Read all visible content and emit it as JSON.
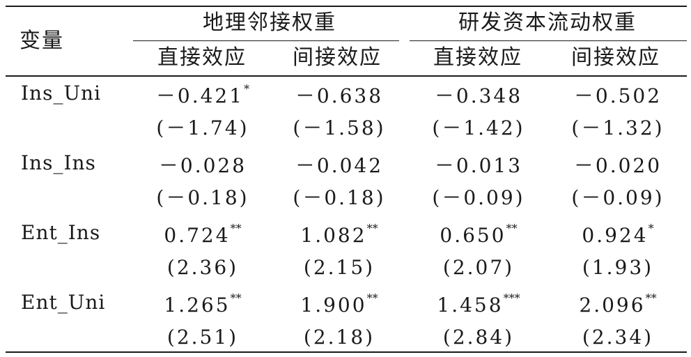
{
  "table": {
    "variable_header": "变量",
    "groups": [
      {
        "label": "地理邻接权重",
        "sub": [
          "直接效应",
          "间接效应"
        ]
      },
      {
        "label": "研发资本流动权重",
        "sub": [
          "直接效应",
          "间接效应"
        ]
      }
    ],
    "rows": [
      {
        "name": "Ins_Uni",
        "coef": [
          "－0.421",
          "－0.638",
          "－0.348",
          "－0.502"
        ],
        "stars": [
          "*",
          "",
          "",
          ""
        ],
        "t": [
          "(－1.74)",
          "(－1.58)",
          "(－1.42)",
          "(－1.32)"
        ]
      },
      {
        "name": "Ins_Ins",
        "coef": [
          "－0.028",
          "－0.042",
          "－0.013",
          "－0.020"
        ],
        "stars": [
          "",
          "",
          "",
          ""
        ],
        "t": [
          "(－0.18)",
          "(－0.18)",
          "(－0.09)",
          "(－0.09)"
        ]
      },
      {
        "name": "Ent_Ins",
        "coef": [
          "0.724",
          "1.082",
          "0.650",
          "0.924"
        ],
        "stars": [
          "**",
          "**",
          "**",
          "*"
        ],
        "t": [
          "(2.36)",
          "(2.15)",
          "(2.07)",
          "(1.93)"
        ]
      },
      {
        "name": "Ent_Uni",
        "coef": [
          "1.265",
          "1.900",
          "1.458",
          "2.096"
        ],
        "stars": [
          "**",
          "**",
          "***",
          "**"
        ],
        "t": [
          "(2.51)",
          "(2.18)",
          "(2.84)",
          "(2.34)"
        ]
      }
    ]
  }
}
